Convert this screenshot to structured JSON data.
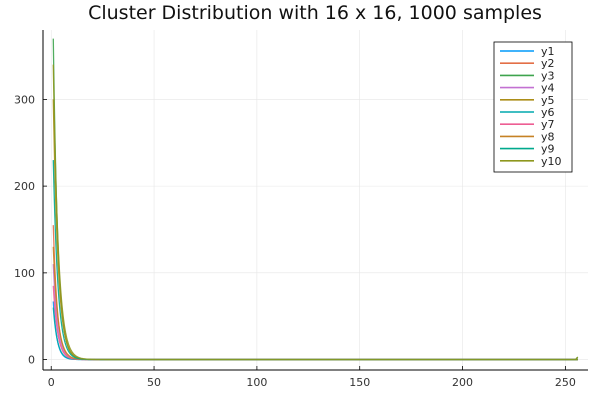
{
  "chart_data": {
    "type": "line",
    "title": "Cluster Distribution with 16 x 16, 1000 samples",
    "xlabel": "",
    "ylabel": "",
    "xlim": [
      1,
      256
    ],
    "ylim": [
      0,
      370
    ],
    "xticks": [
      0,
      50,
      100,
      150,
      200,
      250
    ],
    "yticks": [
      0,
      100,
      200,
      300
    ],
    "grid": true,
    "legend_position": "top-right",
    "series": [
      {
        "name": "y1",
        "color": "#009AFA",
        "peak": 67,
        "decay": 0.55
      },
      {
        "name": "y2",
        "color": "#E36F47",
        "peak": 155,
        "decay": 0.5
      },
      {
        "name": "y3",
        "color": "#3EA44E",
        "peak": 370,
        "decay": 0.45
      },
      {
        "name": "y4",
        "color": "#C371D2",
        "peak": 110,
        "decay": 0.48
      },
      {
        "name": "y5",
        "color": "#AC8E18",
        "peak": 300,
        "decay": 0.42
      },
      {
        "name": "y6",
        "color": "#00A9AD",
        "peak": 60,
        "decay": 0.5
      },
      {
        "name": "y7",
        "color": "#ED5E93",
        "peak": 85,
        "decay": 0.47
      },
      {
        "name": "y8",
        "color": "#C68225",
        "peak": 130,
        "decay": 0.44
      },
      {
        "name": "y9",
        "color": "#00A98D",
        "peak": 230,
        "decay": 0.43
      },
      {
        "name": "y10",
        "color": "#8E971E",
        "peak": 340,
        "decay": 0.4
      }
    ]
  }
}
